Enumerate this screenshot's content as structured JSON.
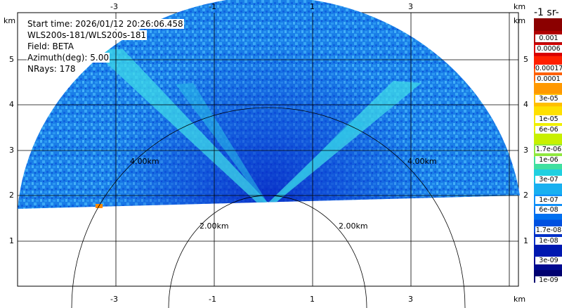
{
  "info": {
    "start_time": "Start time: 2026/01/12 20:26:06.458",
    "instrument": "WLS200s-181/WLS200s-181",
    "field": "Field: BETA",
    "azimuth": "Azimuth(deg): 5.00",
    "nrays": "NRays: 178"
  },
  "axes": {
    "unit": "km",
    "x_ticks": [
      "-3",
      "-1",
      "1",
      "3"
    ],
    "y_ticks": [
      "1",
      "2",
      "3",
      "4",
      "5"
    ],
    "range_rings": [
      "2.00km",
      "2.00km",
      "4.00km",
      "4.00km"
    ]
  },
  "colorbar": {
    "title": "-1 sr-",
    "labels": [
      "0.001",
      "0.0006",
      "0.00017",
      "0.0001",
      "3e-05",
      "1e-05",
      "6e-06",
      "1.7e-06",
      "1e-06",
      "3e-07",
      "1e-07",
      "6e-08",
      "1.7e-08",
      "1e-08",
      "3e-09",
      "1e-09"
    ],
    "colors": [
      "#8b0000",
      "#b00000",
      "#d80000",
      "#ff2000",
      "#ff6000",
      "#ff9900",
      "#ffbf00",
      "#ffe000",
      "#f0f000",
      "#c8f000",
      "#90e840",
      "#40e0a0",
      "#20d0e0",
      "#18b0f0",
      "#1090f8",
      "#0070f0",
      "#0050e0",
      "#0030c8",
      "#0018b0",
      "#000a90",
      "#000070"
    ]
  },
  "palette": {
    "background": "#ffffff",
    "data_base": "#1a7fe8",
    "data_light": "#3aa8f5",
    "data_dark": "#0b3fd6",
    "streak": "#3ed8e8",
    "hot": "#ff8a00"
  }
}
